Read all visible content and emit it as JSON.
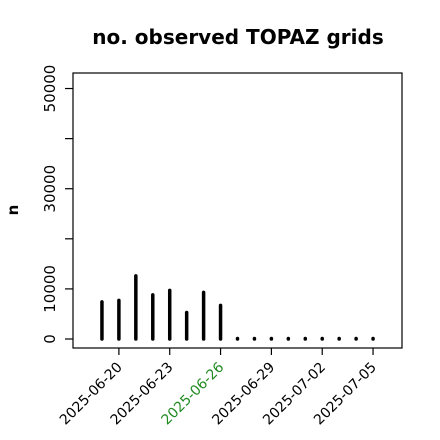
{
  "chart_data": {
    "type": "bar",
    "title": "no. observed TOPAZ grids",
    "ylabel": "n",
    "xlabel": "",
    "ylim": [
      0,
      52500
    ],
    "xlim": [
      "2025-06-18",
      "2025-07-06"
    ],
    "grid": false,
    "bar_color": "#000000",
    "dates": [
      "2025-06-19",
      "2025-06-20",
      "2025-06-21",
      "2025-06-22",
      "2025-06-23",
      "2025-06-24",
      "2025-06-25",
      "2025-06-26",
      "2025-06-27",
      "2025-06-28",
      "2025-06-29",
      "2025-06-30",
      "2025-07-01",
      "2025-07-02",
      "2025-07-03",
      "2025-07-04",
      "2025-07-05"
    ],
    "values": [
      7400,
      7700,
      12600,
      8800,
      9700,
      5300,
      9300,
      6700,
      0,
      0,
      0,
      0,
      0,
      0,
      0,
      0,
      0
    ],
    "y_ticks": [
      0,
      10000,
      20000,
      30000,
      40000,
      50000
    ],
    "y_tick_labels": [
      "0",
      "10000",
      "",
      "30000",
      "",
      "50000"
    ],
    "x_ticks": [
      "2025-06-20",
      "2025-06-23",
      "2025-06-26",
      "2025-06-29",
      "2025-07-02",
      "2025-07-05"
    ],
    "x_tick_labels": [
      "2025-06-20",
      "2025-06-23",
      "2025-06-26",
      "2025-06-29",
      "2025-07-02",
      "2025-07-05"
    ],
    "x_tick_colors": [
      "#000000",
      "#000000",
      "#228B22",
      "#000000",
      "#000000",
      "#000000"
    ]
  }
}
